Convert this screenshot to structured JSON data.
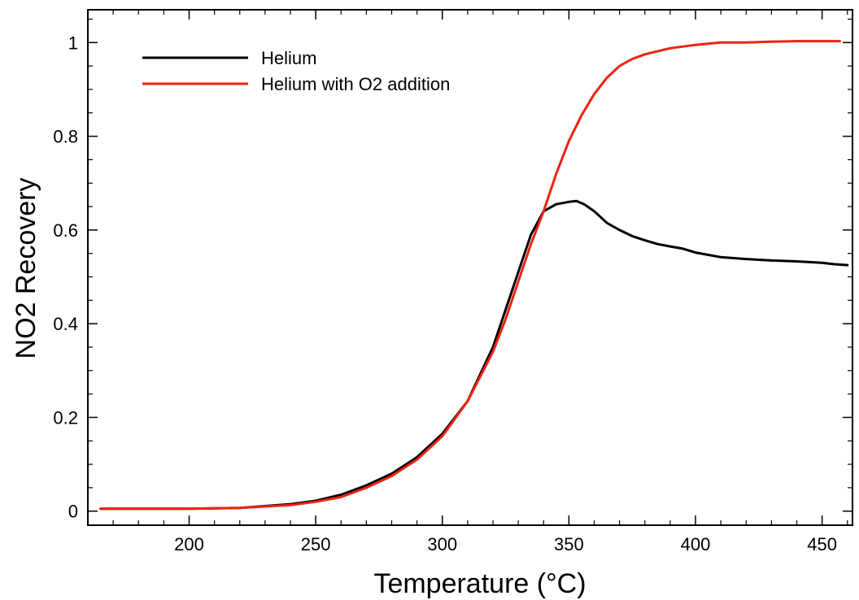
{
  "chart_data": {
    "type": "line",
    "title": "",
    "xlabel": "Temperature (°C)",
    "ylabel": "NO2 Recovery",
    "xlim": [
      160,
      462
    ],
    "ylim": [
      -0.03,
      1.07
    ],
    "x_ticks": [
      200,
      250,
      300,
      350,
      400,
      450
    ],
    "x_tick_labels": [
      "200",
      "250",
      "300",
      "350",
      "400",
      "450"
    ],
    "y_ticks": [
      0,
      0.2,
      0.4,
      0.6,
      0.8,
      1
    ],
    "y_tick_labels": [
      "0",
      "0.2",
      "0.4",
      "0.6",
      "0.8",
      "1"
    ],
    "grid": false,
    "legend_position": "top-left",
    "series": [
      {
        "name": "Helium",
        "color": "#000000",
        "x": [
          165,
          180,
          200,
          220,
          240,
          250,
          260,
          270,
          280,
          290,
          300,
          310,
          320,
          325,
          330,
          335,
          340,
          345,
          350,
          353,
          356,
          360,
          365,
          370,
          375,
          380,
          385,
          390,
          395,
          400,
          410,
          420,
          430,
          440,
          450,
          455,
          460
        ],
        "y": [
          0.005,
          0.005,
          0.005,
          0.007,
          0.015,
          0.022,
          0.035,
          0.055,
          0.08,
          0.115,
          0.165,
          0.235,
          0.35,
          0.43,
          0.51,
          0.59,
          0.64,
          0.655,
          0.66,
          0.662,
          0.655,
          0.64,
          0.615,
          0.6,
          0.587,
          0.578,
          0.57,
          0.565,
          0.56,
          0.552,
          0.542,
          0.538,
          0.535,
          0.533,
          0.53,
          0.527,
          0.525
        ]
      },
      {
        "name": "Helium with O2 addition",
        "color": "#ee2211",
        "x": [
          165,
          180,
          200,
          220,
          240,
          250,
          260,
          270,
          280,
          290,
          300,
          310,
          320,
          325,
          330,
          335,
          340,
          345,
          350,
          355,
          360,
          365,
          370,
          375,
          380,
          390,
          400,
          410,
          420,
          430,
          440,
          450,
          457
        ],
        "y": [
          0.005,
          0.005,
          0.005,
          0.007,
          0.013,
          0.02,
          0.03,
          0.05,
          0.075,
          0.11,
          0.16,
          0.235,
          0.34,
          0.41,
          0.49,
          0.57,
          0.64,
          0.72,
          0.79,
          0.845,
          0.89,
          0.925,
          0.95,
          0.965,
          0.975,
          0.988,
          0.995,
          1.0,
          1.0,
          1.002,
          1.003,
          1.003,
          1.003
        ]
      }
    ]
  }
}
